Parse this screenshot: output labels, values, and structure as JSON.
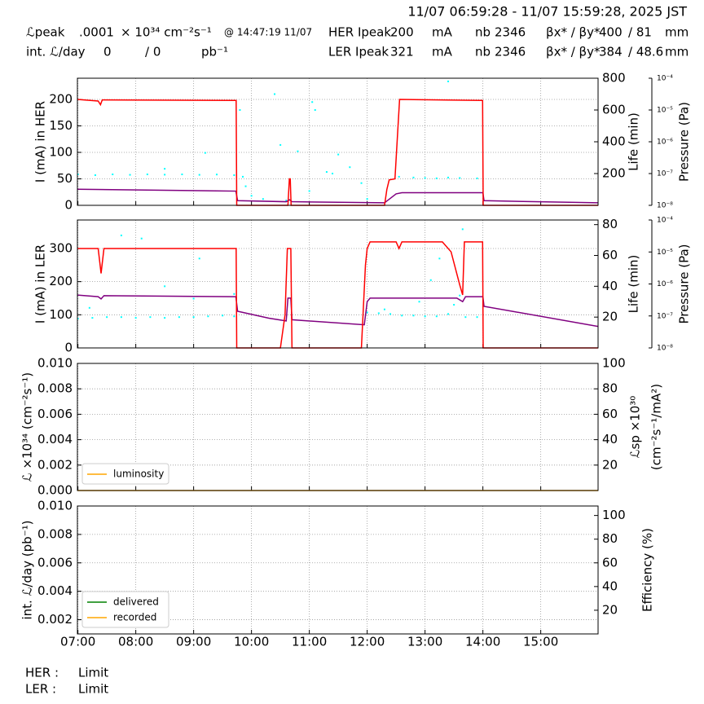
{
  "header": {
    "time_range": "11/07 06:59:28 - 11/07 15:59:28, 2025 JST",
    "rows": [
      [
        "ℒpeak",
        ".0001",
        "× 10³⁴ cm⁻²s⁻¹",
        "@ 14:47:19 11/07",
        "HER Ipeak",
        "200",
        "mA",
        "nb",
        "2346",
        "βx* / βy*",
        "400",
        "/ 81",
        "mm"
      ],
      [
        "int. ℒ/day",
        "0",
        "/ 0",
        "pb⁻¹",
        "LER Ipeak",
        "321",
        "mA",
        "nb",
        "2346",
        "βx* / βy*",
        "384",
        "/ 48.6",
        "mm"
      ]
    ]
  },
  "footer": [
    [
      "HER :",
      "Limit"
    ],
    [
      "LER :",
      "Limit"
    ]
  ],
  "chart_data": [
    {
      "type": "line",
      "ylabel": "I (mA) in HER",
      "y2label": "Life (min)",
      "y3label": "Pressure (Pa)",
      "xlim": [
        6.991,
        15.991
      ],
      "xticks": [
        7,
        8,
        9,
        10,
        11,
        12,
        13,
        14,
        15
      ],
      "ylim": [
        0,
        240
      ],
      "yticks": [
        0,
        50,
        100,
        150,
        200
      ],
      "y2lim": [
        0,
        800
      ],
      "y2ticks": [
        200,
        400,
        600,
        800
      ],
      "y3lim": [
        1e-08,
        0.0001
      ],
      "y3scale": "log",
      "y3ticks": [
        {
          "value": 1e-08,
          "label": "10⁻⁸"
        },
        {
          "value": 1e-07,
          "label": "10⁻⁷"
        },
        {
          "value": 1e-06,
          "label": "10⁻⁶"
        },
        {
          "value": 1e-05,
          "label": "10⁻⁵"
        },
        {
          "value": 0.0001,
          "label": "10⁻⁴"
        }
      ],
      "grid": true,
      "series": [
        {
          "type": "scatter",
          "color": "#00ffff",
          "axis": "y2",
          "x": [
            7.0,
            7.3,
            7.6,
            7.9,
            8.2,
            8.5,
            8.8,
            9.1,
            9.4,
            9.7,
            8.5,
            9.2,
            9.85,
            9.9,
            10.0,
            10.2,
            10.4,
            10.5,
            10.6,
            10.8,
            11.0,
            11.1,
            11.3,
            11.4,
            11.5,
            11.7,
            11.9,
            12.0,
            12.55,
            12.8,
            13.0,
            13.2,
            13.4,
            13.6,
            13.9,
            13.4,
            9.8,
            11.05
          ],
          "values": [
            195,
            190,
            195,
            192,
            195,
            193,
            195,
            192,
            194,
            190,
            230,
            330,
            180,
            120,
            60,
            40,
            700,
            380,
            30,
            340,
            90,
            600,
            210,
            200,
            320,
            240,
            140,
            40,
            180,
            175,
            172,
            170,
            175,
            172,
            170,
            780,
            600,
            650
          ]
        },
        {
          "type": "line",
          "color": "#800080",
          "axis": "y3",
          "x": [
            6.991,
            9.73,
            9.76,
            10.6,
            10.66,
            10.7,
            12.3,
            12.5,
            12.6,
            14.0,
            14.02,
            15.991
          ],
          "values": [
            3.2e-08,
            2.8e-08,
            1.4e-08,
            1.3e-08,
            1.5e-08,
            1.3e-08,
            1.2e-08,
            2.3e-08,
            2.5e-08,
            2.5e-08,
            1.4e-08,
            1.2e-08
          ]
        },
        {
          "type": "line",
          "color": "#ff0000",
          "x": [
            6.991,
            7.35,
            7.39,
            7.42,
            9.72,
            9.735,
            9.745,
            10.63,
            10.655,
            10.67,
            10.685,
            12.3,
            12.34,
            12.38,
            12.48,
            12.56,
            13.98,
            13.995,
            14.005,
            15.991
          ],
          "values": [
            200,
            197,
            190,
            199,
            198,
            198,
            0,
            0,
            50,
            50,
            0,
            0,
            30,
            48,
            50,
            200,
            198,
            198,
            0,
            0
          ]
        }
      ]
    },
    {
      "type": "line",
      "ylabel": "I (mA) in LER",
      "y2label": "Life (min)",
      "y3label": "Pressure (Pa)",
      "xlim": [
        6.991,
        15.991
      ],
      "xticks": [
        7,
        8,
        9,
        10,
        11,
        12,
        13,
        14,
        15
      ],
      "ylim": [
        0,
        386
      ],
      "yticks": [
        0,
        100,
        200,
        300
      ],
      "y2lim": [
        0,
        83
      ],
      "y2ticks": [
        20,
        40,
        60,
        80
      ],
      "y3lim": [
        1e-08,
        0.0001
      ],
      "y3scale": "log",
      "y3ticks": [
        {
          "value": 1e-08,
          "label": "10⁻⁸"
        },
        {
          "value": 1e-07,
          "label": "10⁻⁷"
        },
        {
          "value": 1e-06,
          "label": "10⁻⁶"
        },
        {
          "value": 1e-05,
          "label": "10⁻⁵"
        },
        {
          "value": 0.0001,
          "label": "10⁻⁴"
        }
      ],
      "grid": true,
      "series": [
        {
          "type": "scatter",
          "color": "#00ffff",
          "axis": "y2",
          "x": [
            7.0,
            7.25,
            7.5,
            7.75,
            8.0,
            8.25,
            8.5,
            8.75,
            9.0,
            9.25,
            9.5,
            9.7,
            7.2,
            7.75,
            8.1,
            8.5,
            9.0,
            9.1,
            9.7,
            12.0,
            12.2,
            12.4,
            12.6,
            12.8,
            13.0,
            13.2,
            13.4,
            13.5,
            13.6,
            13.7,
            13.9,
            12.3,
            12.9,
            13.1,
            13.25,
            13.65
          ],
          "values": [
            19,
            19.5,
            20,
            20,
            19.5,
            20,
            19.5,
            20,
            20,
            20.5,
            21,
            20.5,
            26,
            73,
            71,
            40,
            32,
            58,
            35,
            23,
            22.5,
            22,
            21,
            21,
            20.5,
            20.5,
            22,
            28,
            34,
            20,
            20,
            25,
            30,
            44,
            58,
            77
          ]
        },
        {
          "type": "line",
          "color": "#800080",
          "axis": "y3",
          "x": [
            6.991,
            7.35,
            7.4,
            7.45,
            9.73,
            9.76,
            10.3,
            10.6,
            10.63,
            10.68,
            10.7,
            11.95,
            12.0,
            12.05,
            13.55,
            13.65,
            13.7,
            14.0,
            14.02,
            15.991
          ],
          "values": [
            4.5e-07,
            4e-07,
            3.4e-07,
            4.3e-07,
            4e-07,
            1.4e-07,
            8.5e-08,
            7e-08,
            3.6e-07,
            3.6e-07,
            7.6e-08,
            5.3e-08,
            2.8e-07,
            3.6e-07,
            3.6e-07,
            2.8e-07,
            4e-07,
            4e-07,
            2e-07,
            4.7e-08
          ]
        },
        {
          "type": "line",
          "color": "#ff0000",
          "x": [
            6.991,
            7.35,
            7.4,
            7.45,
            9.72,
            9.735,
            9.745,
            10.5,
            10.58,
            10.62,
            10.68,
            10.7,
            11.9,
            11.97,
            12.0,
            12.05,
            12.5,
            12.55,
            12.6,
            13.3,
            13.45,
            13.6,
            13.65,
            13.68,
            13.98,
            13.995,
            14.005,
            15.991
          ],
          "values": [
            300,
            300,
            225,
            300,
            300,
            300,
            0,
            0,
            100,
            300,
            300,
            0,
            0,
            250,
            300,
            320,
            320,
            300,
            320,
            320,
            290,
            190,
            160,
            320,
            320,
            320,
            0,
            0
          ]
        }
      ]
    },
    {
      "type": "line",
      "ylabel": "ℒ ×10³⁴ (cm⁻²s⁻¹)",
      "y2label": [
        "ℒsp ×10³⁰",
        "(cm⁻²s⁻¹/mA²)"
      ],
      "xlim": [
        6.991,
        15.991
      ],
      "xticks": [
        7,
        8,
        9,
        10,
        11,
        12,
        13,
        14,
        15
      ],
      "ylim": [
        0,
        0.01
      ],
      "yticks": [
        {
          "value": 0,
          "label": "0.000"
        },
        {
          "value": 0.002,
          "label": "0.002"
        },
        {
          "value": 0.004,
          "label": "0.004"
        },
        {
          "value": 0.006,
          "label": "0.006"
        },
        {
          "value": 0.008,
          "label": "0.008"
        },
        {
          "value": 0.01,
          "label": "0.010"
        }
      ],
      "y2lim": [
        0,
        100
      ],
      "y2ticks": [
        20,
        40,
        60,
        80,
        100
      ],
      "grid": true,
      "legend": "lower left",
      "series": [
        {
          "type": "line",
          "name": "luminosity",
          "color": "#ffa500",
          "x": [
            6.991,
            15.991
          ],
          "values": [
            0,
            0
          ]
        }
      ]
    },
    {
      "type": "line",
      "ylabel": "int. ℒ/day (pb⁻¹)",
      "y2label": "Efficiency (%)",
      "xlim": [
        6.991,
        15.991
      ],
      "xticks": [
        {
          "value": 7,
          "label": "07:00"
        },
        {
          "value": 8,
          "label": "08:00"
        },
        {
          "value": 9,
          "label": "09:00"
        },
        {
          "value": 10,
          "label": "10:00"
        },
        {
          "value": 11,
          "label": "11:00"
        },
        {
          "value": 12,
          "label": "12:00"
        },
        {
          "value": 13,
          "label": "13:00"
        },
        {
          "value": 14,
          "label": "14:00"
        },
        {
          "value": 15,
          "label": "15:00"
        }
      ],
      "ylim": [
        0.001,
        0.01
      ],
      "yticks": [
        {
          "value": 0.002,
          "label": "0.002"
        },
        {
          "value": 0.004,
          "label": "0.004"
        },
        {
          "value": 0.006,
          "label": "0.006"
        },
        {
          "value": 0.008,
          "label": "0.008"
        },
        {
          "value": 0.01,
          "label": "0.010"
        }
      ],
      "y2lim": [
        0,
        108
      ],
      "y2ticks": [
        20,
        40,
        60,
        80,
        100
      ],
      "grid": true,
      "legend": "lower left",
      "series": [
        {
          "type": "line",
          "name": "delivered",
          "color": "#008000",
          "x": [
            6.991,
            15.991
          ],
          "values": [
            0,
            0
          ]
        },
        {
          "type": "line",
          "name": "recorded",
          "color": "#ffa500",
          "x": [
            6.991,
            15.991
          ],
          "values": [
            0,
            0
          ]
        }
      ]
    }
  ]
}
